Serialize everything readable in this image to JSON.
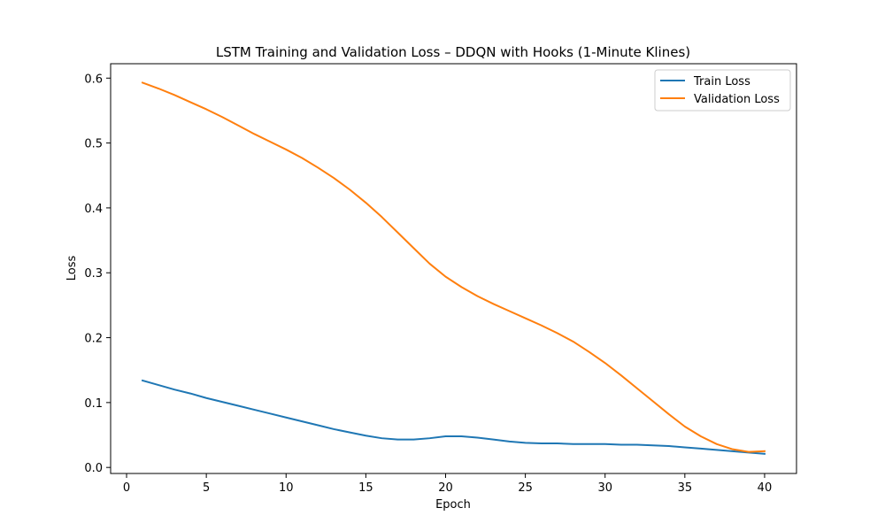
{
  "chart_data": {
    "type": "line",
    "title": "LSTM Training and Validation Loss – DDQN with Hooks (1-Minute Klines)",
    "xlabel": "Epoch",
    "ylabel": "Loss",
    "xlim": [
      -1,
      42
    ],
    "ylim": [
      -0.0093,
      0.6222
    ],
    "x_ticks": [
      0,
      5,
      10,
      15,
      20,
      25,
      30,
      35,
      40
    ],
    "y_ticks": [
      0.0,
      0.1,
      0.2,
      0.3,
      0.4,
      0.5,
      0.6
    ],
    "y_tick_labels": [
      "0.0",
      "0.1",
      "0.2",
      "0.3",
      "0.4",
      "0.5",
      "0.6"
    ],
    "grid": false,
    "legend_position": "top-right",
    "x": [
      1,
      2,
      3,
      4,
      5,
      6,
      7,
      8,
      9,
      10,
      11,
      12,
      13,
      14,
      15,
      16,
      17,
      18,
      19,
      20,
      21,
      22,
      23,
      24,
      25,
      26,
      27,
      28,
      29,
      30,
      31,
      32,
      33,
      34,
      35,
      36,
      37,
      38,
      39,
      40
    ],
    "series": [
      {
        "name": "Train Loss",
        "color": "#1f77b4",
        "values": [
          0.134,
          0.127,
          0.12,
          0.114,
          0.107,
          0.101,
          0.095,
          0.089,
          0.083,
          0.077,
          0.071,
          0.065,
          0.059,
          0.054,
          0.049,
          0.045,
          0.043,
          0.043,
          0.045,
          0.048,
          0.048,
          0.046,
          0.043,
          0.04,
          0.038,
          0.037,
          0.037,
          0.036,
          0.036,
          0.036,
          0.035,
          0.035,
          0.034,
          0.033,
          0.031,
          0.029,
          0.027,
          0.025,
          0.023,
          0.021
        ]
      },
      {
        "name": "Validation Loss",
        "color": "#ff7f0e",
        "values": [
          0.593,
          0.584,
          0.574,
          0.563,
          0.552,
          0.54,
          0.527,
          0.514,
          0.502,
          0.49,
          0.477,
          0.462,
          0.446,
          0.428,
          0.408,
          0.386,
          0.362,
          0.338,
          0.314,
          0.294,
          0.278,
          0.264,
          0.252,
          0.241,
          0.23,
          0.219,
          0.207,
          0.194,
          0.178,
          0.161,
          0.142,
          0.122,
          0.102,
          0.082,
          0.063,
          0.048,
          0.036,
          0.028,
          0.024,
          0.025
        ]
      }
    ]
  }
}
